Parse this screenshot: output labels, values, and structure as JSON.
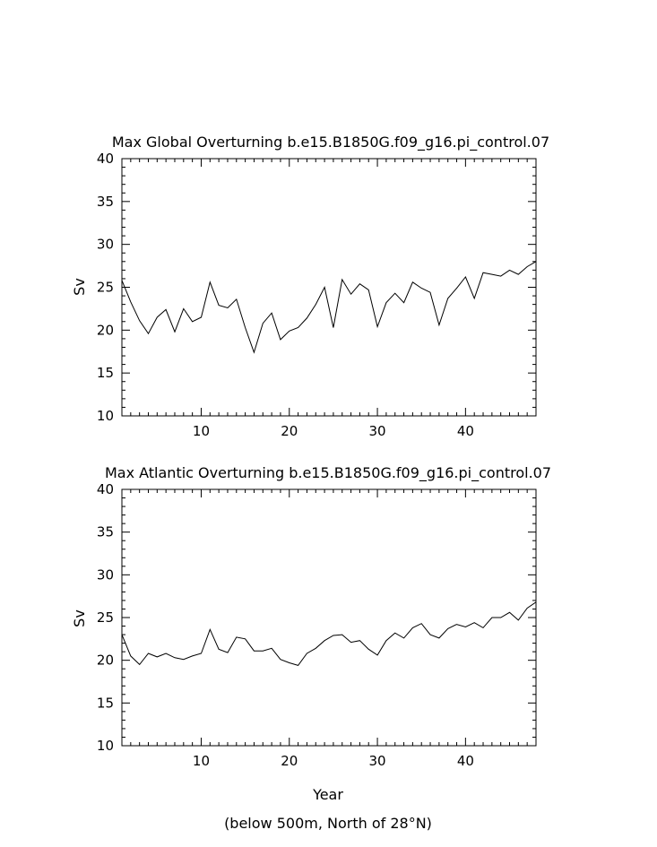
{
  "chart_data": [
    {
      "type": "line",
      "title": "Max Global Overturning b.e15.B1850G.f09_g16.pi_control.07",
      "xlabel": "",
      "ylabel": "Sv",
      "xlim": [
        1,
        48
      ],
      "ylim": [
        10,
        40
      ],
      "xticks": [
        10,
        20,
        30,
        40
      ],
      "yticks": [
        10,
        15,
        20,
        25,
        30,
        35,
        40
      ],
      "grid": false,
      "x": [
        1,
        2,
        3,
        4,
        5,
        6,
        7,
        8,
        9,
        10,
        11,
        12,
        13,
        14,
        15,
        16,
        17,
        18,
        19,
        20,
        21,
        22,
        23,
        24,
        25,
        26,
        27,
        28,
        29,
        30,
        31,
        32,
        33,
        34,
        35,
        36,
        37,
        38,
        39,
        40,
        41,
        42,
        43,
        44,
        45,
        46,
        47,
        48
      ],
      "series": [
        {
          "values": [
            25.8,
            23.3,
            21.1,
            19.6,
            21.5,
            22.4,
            19.8,
            22.5,
            21.0,
            21.5,
            25.6,
            22.9,
            22.6,
            23.6,
            20.3,
            17.4,
            20.8,
            22.0,
            18.9,
            19.9,
            20.3,
            21.4,
            23.0,
            25.0,
            20.3,
            25.9,
            24.2,
            25.4,
            24.7,
            20.4,
            23.2,
            24.3,
            23.2,
            25.6,
            24.9,
            24.4,
            20.6,
            23.7,
            24.9,
            26.2,
            23.7,
            26.7,
            26.5,
            26.3,
            27.0,
            26.5,
            27.4,
            28.0
          ]
        }
      ]
    },
    {
      "type": "line",
      "title": "Max Atlantic Overturning b.e15.B1850G.f09_g16.pi_control.07",
      "xlabel": "Year",
      "ylabel": "Sv",
      "xlim": [
        1,
        48
      ],
      "ylim": [
        10,
        40
      ],
      "xticks": [
        10,
        20,
        30,
        40
      ],
      "yticks": [
        10,
        15,
        20,
        25,
        30,
        35,
        40
      ],
      "grid": false,
      "x": [
        1,
        2,
        3,
        4,
        5,
        6,
        7,
        8,
        9,
        10,
        11,
        12,
        13,
        14,
        15,
        16,
        17,
        18,
        19,
        20,
        21,
        22,
        23,
        24,
        25,
        26,
        27,
        28,
        29,
        30,
        31,
        32,
        33,
        34,
        35,
        36,
        37,
        38,
        39,
        40,
        41,
        42,
        43,
        44,
        45,
        46,
        47,
        48
      ],
      "series": [
        {
          "values": [
            23.0,
            20.5,
            19.5,
            20.8,
            20.4,
            20.8,
            20.3,
            20.1,
            20.5,
            20.8,
            23.6,
            21.3,
            20.9,
            22.7,
            22.5,
            21.1,
            21.1,
            21.4,
            20.1,
            19.7,
            19.4,
            20.8,
            21.4,
            22.3,
            22.9,
            23.0,
            22.1,
            22.3,
            21.3,
            20.6,
            22.3,
            23.2,
            22.6,
            23.8,
            24.3,
            23.0,
            22.6,
            23.7,
            24.2,
            23.9,
            24.4,
            23.8,
            25.0,
            25.0,
            25.6,
            24.7,
            26.1,
            26.8
          ]
        }
      ]
    }
  ],
  "footnote": "(below 500m, North of 28°N)"
}
